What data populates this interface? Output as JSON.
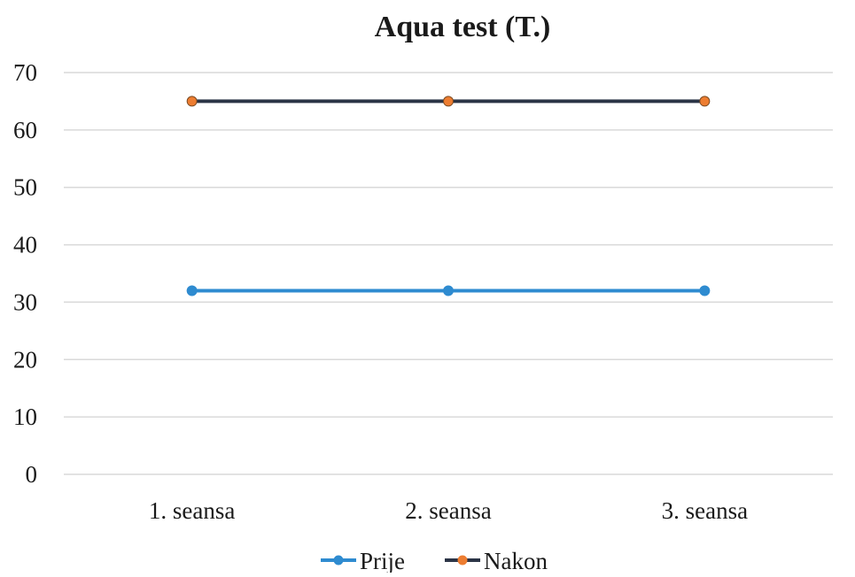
{
  "chart_data": {
    "type": "line",
    "title": "Aqua test (T.)",
    "xlabel": "",
    "ylabel": "",
    "categories": [
      "1. seansa",
      "2. seansa",
      "3. seansa"
    ],
    "ylim": [
      0,
      70
    ],
    "yticks": [
      0,
      10,
      20,
      30,
      40,
      50,
      60,
      70
    ],
    "grid": true,
    "legend_position": "bottom",
    "series": [
      {
        "name": "Prije",
        "values": [
          32,
          32,
          32
        ],
        "line_color": "#2e8bd0",
        "marker_color": "#2e8bd0"
      },
      {
        "name": "Nakon",
        "values": [
          65,
          65,
          65
        ],
        "line_color": "#2b3446",
        "marker_color": "#ed7d31"
      }
    ]
  }
}
